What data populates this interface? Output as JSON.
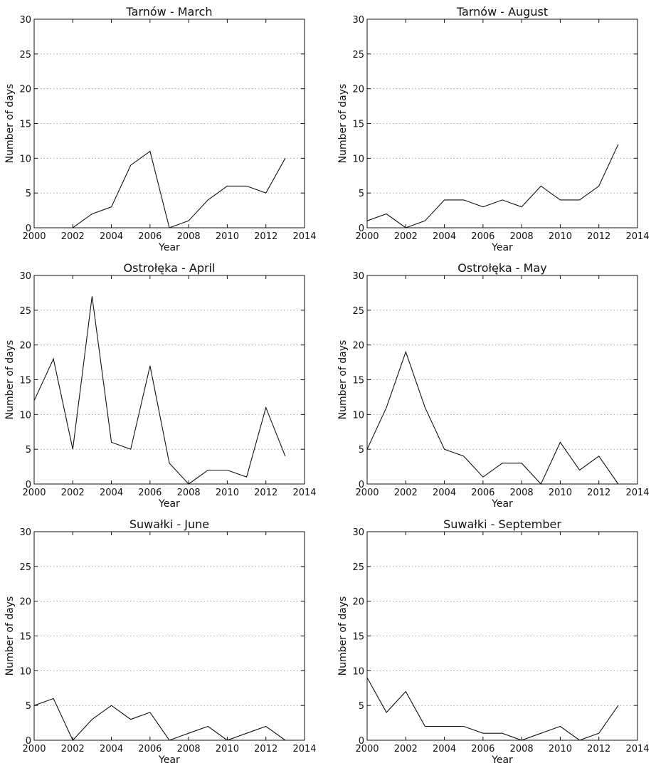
{
  "chart_data": [
    {
      "type": "line",
      "title": "Tarnów - March",
      "xlabel": "Year",
      "ylabel": "Number of days",
      "xlim": [
        2000,
        2014
      ],
      "ylim": [
        0,
        30
      ],
      "xticks": [
        2000,
        2002,
        2004,
        2006,
        2008,
        2010,
        2012,
        2014
      ],
      "yticks": [
        0,
        5,
        10,
        15,
        20,
        25,
        30
      ],
      "grid": "horizontal-dotted",
      "x": [
        2000,
        2001,
        2002,
        2003,
        2004,
        2005,
        2006,
        2007,
        2008,
        2009,
        2010,
        2011,
        2012,
        2013
      ],
      "values": [
        0,
        0,
        0,
        2,
        3,
        9,
        11,
        0,
        1,
        4,
        6,
        6,
        5,
        10
      ]
    },
    {
      "type": "line",
      "title": "Tarnów - August",
      "xlabel": "Year",
      "ylabel": "Number of days",
      "xlim": [
        2000,
        2014
      ],
      "ylim": [
        0,
        30
      ],
      "xticks": [
        2000,
        2002,
        2004,
        2006,
        2008,
        2010,
        2012,
        2014
      ],
      "yticks": [
        0,
        5,
        10,
        15,
        20,
        25,
        30
      ],
      "grid": "horizontal-dotted",
      "x": [
        2000,
        2001,
        2002,
        2003,
        2004,
        2005,
        2006,
        2007,
        2008,
        2009,
        2010,
        2011,
        2012,
        2013
      ],
      "values": [
        1,
        2,
        0,
        1,
        4,
        4,
        3,
        4,
        3,
        6,
        4,
        4,
        6,
        12
      ]
    },
    {
      "type": "line",
      "title": "Ostrołęka - April",
      "xlabel": "Year",
      "ylabel": "Number of days",
      "xlim": [
        2000,
        2014
      ],
      "ylim": [
        0,
        30
      ],
      "xticks": [
        2000,
        2002,
        2004,
        2006,
        2008,
        2010,
        2012,
        2014
      ],
      "yticks": [
        0,
        5,
        10,
        15,
        20,
        25,
        30
      ],
      "grid": "horizontal-dotted",
      "x": [
        2000,
        2001,
        2002,
        2003,
        2004,
        2005,
        2006,
        2007,
        2008,
        2009,
        2010,
        2011,
        2012,
        2013
      ],
      "values": [
        12,
        18,
        5,
        27,
        6,
        5,
        17,
        3,
        0,
        2,
        2,
        1,
        11,
        4
      ]
    },
    {
      "type": "line",
      "title": "Ostrołęka - May",
      "xlabel": "Year",
      "ylabel": "Number of days",
      "xlim": [
        2000,
        2014
      ],
      "ylim": [
        0,
        30
      ],
      "xticks": [
        2000,
        2002,
        2004,
        2006,
        2008,
        2010,
        2012,
        2014
      ],
      "yticks": [
        0,
        5,
        10,
        15,
        20,
        25,
        30
      ],
      "grid": "horizontal-dotted",
      "x": [
        2000,
        2001,
        2002,
        2003,
        2004,
        2005,
        2006,
        2007,
        2008,
        2009,
        2010,
        2011,
        2012,
        2013
      ],
      "values": [
        5,
        11,
        19,
        11,
        5,
        4,
        1,
        3,
        3,
        0,
        6,
        2,
        4,
        0
      ]
    },
    {
      "type": "line",
      "title": "Suwałki - June",
      "xlabel": "Year",
      "ylabel": "Number of days",
      "xlim": [
        2000,
        2014
      ],
      "ylim": [
        0,
        30
      ],
      "xticks": [
        2000,
        2002,
        2004,
        2006,
        2008,
        2010,
        2012,
        2014
      ],
      "yticks": [
        0,
        5,
        10,
        15,
        20,
        25,
        30
      ],
      "grid": "horizontal-dotted",
      "x": [
        2000,
        2001,
        2002,
        2003,
        2004,
        2005,
        2006,
        2007,
        2008,
        2009,
        2010,
        2011,
        2012,
        2013
      ],
      "values": [
        5,
        6,
        0,
        3,
        5,
        3,
        4,
        0,
        1,
        2,
        0,
        1,
        2,
        0
      ]
    },
    {
      "type": "line",
      "title": "Suwałki - September",
      "xlabel": "Year",
      "ylabel": "Number of days",
      "xlim": [
        2000,
        2014
      ],
      "ylim": [
        0,
        30
      ],
      "xticks": [
        2000,
        2002,
        2004,
        2006,
        2008,
        2010,
        2012,
        2014
      ],
      "yticks": [
        0,
        5,
        10,
        15,
        20,
        25,
        30
      ],
      "grid": "horizontal-dotted",
      "x": [
        2000,
        2001,
        2002,
        2003,
        2004,
        2005,
        2006,
        2007,
        2008,
        2009,
        2010,
        2011,
        2012,
        2013
      ],
      "values": [
        9,
        4,
        7,
        2,
        2,
        2,
        1,
        1,
        0,
        1,
        2,
        0,
        1,
        5
      ]
    }
  ]
}
